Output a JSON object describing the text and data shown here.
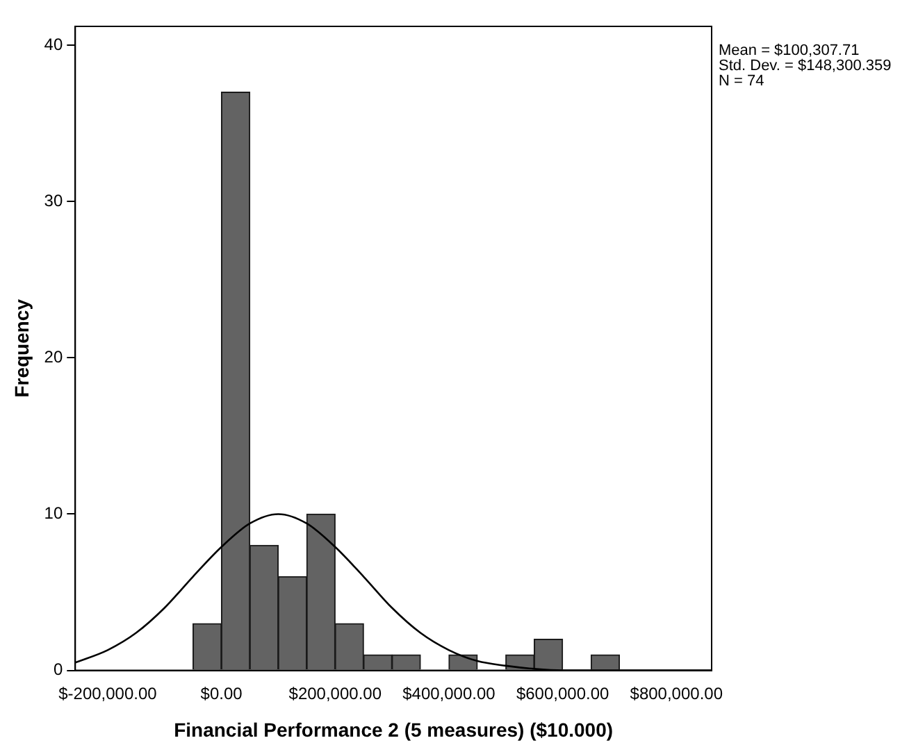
{
  "chart_data": {
    "type": "histogram",
    "xlabel": "Financial Performance 2 (5 measures) ($10.000)",
    "ylabel": "Frequency",
    "bins": [
      -50000,
      0,
      50000,
      100000,
      150000,
      200000,
      250000,
      300000,
      350000,
      400000,
      450000,
      500000,
      550000,
      600000,
      650000,
      700000
    ],
    "values": [
      3,
      37,
      8,
      6,
      10,
      3,
      1,
      1,
      0,
      1,
      0,
      1,
      2,
      0,
      1
    ],
    "color": "#636363",
    "series": [
      {
        "type": "line",
        "color": "#000000",
        "x": [
          -257000,
          -200000,
          -150000,
          -100000,
          -50000,
          0,
          50000,
          100000,
          150000,
          200000,
          250000,
          300000,
          350000,
          400000,
          450000,
          500000,
          550000,
          600000,
          650000,
          700000,
          800000,
          862000
        ],
        "values": [
          0.5,
          1.3,
          2.4,
          4.0,
          6.0,
          7.9,
          9.4,
          10.0,
          9.4,
          7.9,
          6.0,
          4.0,
          2.4,
          1.3,
          0.6,
          0.3,
          0.1,
          0.0,
          0.0,
          0.0,
          0.0,
          0.0
        ]
      }
    ],
    "xlim": [
      -257000,
      862000
    ],
    "xticks": [
      {
        "value": -200000,
        "label": "$-200,000.00"
      },
      {
        "value": 0,
        "label": "$0.00"
      },
      {
        "value": 200000,
        "label": "$200,000.00"
      },
      {
        "value": 400000,
        "label": "$400,000.00"
      },
      {
        "value": 600000,
        "label": "$600,000.00"
      },
      {
        "value": 800000,
        "label": "$800,000.00"
      }
    ],
    "ylim": [
      0,
      41.2
    ],
    "yticks": [
      0,
      10,
      20,
      30,
      40
    ],
    "grid": false,
    "legend": false,
    "marker": "none",
    "annotations": [
      "Mean = $100,307.71\nStd. Dev. = $148,300.359\nN = 74"
    ]
  }
}
